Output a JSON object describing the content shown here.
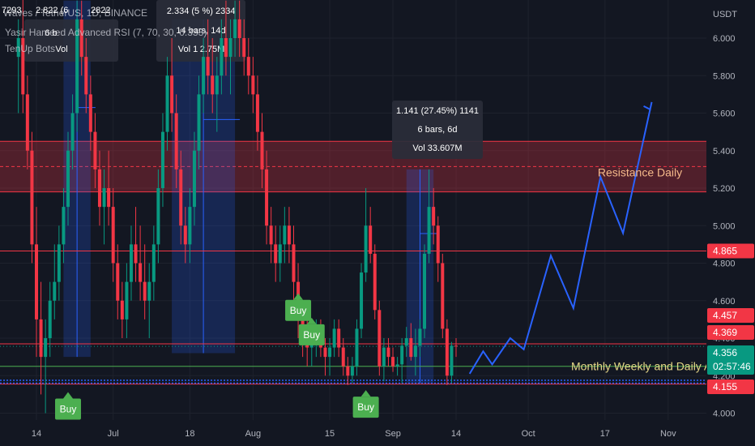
{
  "chart_data": {
    "type": "candlestick",
    "currency": "USDT",
    "header": {
      "symbol_line": "Waves / TetherUS, 1D, BINANCE",
      "indicator_line": "Yasir Hameed Advanced RSI (7, 70, 30, 0.333)",
      "bot_line": "TenUp Bots",
      "ohlc_fragment_1": "7293",
      "ohlc_fragment_2": "2.822 (6",
      "ohlc_fragment_3": "2822"
    },
    "y_axis": {
      "ticks": [
        6.0,
        5.8,
        5.6,
        5.4,
        5.2,
        5.0,
        4.8,
        4.6,
        4.4,
        4.2,
        4.0
      ],
      "tick_labels": [
        "6.000",
        "5.800",
        "5.600",
        "5.400",
        "5.200",
        "5.000",
        "4.800",
        "4.600",
        "4.400",
        "4.200",
        "4.000"
      ],
      "range": [
        3.94,
        6.18
      ]
    },
    "x_axis": {
      "labels": [
        "14",
        "Jul",
        "18",
        "Aug",
        "15",
        "Sep",
        "14",
        "Oct",
        "17",
        "Nov"
      ],
      "label_days": [
        0,
        17,
        34,
        48,
        65,
        79,
        93,
        109,
        126,
        140
      ]
    },
    "price_labels": [
      {
        "text": "4.865",
        "value": 4.865,
        "color": "#f23645"
      },
      {
        "text": "4.457",
        "value": 4.457,
        "color": "#f23645"
      },
      {
        "text": "4.369",
        "value": 4.369,
        "color": "#f23645"
      },
      {
        "text": "4.356",
        "value": 4.356,
        "color": "#089981",
        "countdown": "02:57:46"
      },
      {
        "text": "4.155",
        "value": 4.155,
        "color": "#f23645"
      }
    ],
    "horizontal_lines": [
      {
        "value": 4.865,
        "color": "#f23645"
      },
      {
        "value": 4.37,
        "color": "#f23645"
      },
      {
        "value": 4.25,
        "color": "#4caf50"
      },
      {
        "value": 4.155,
        "color": "#f23645"
      }
    ],
    "zones": [
      {
        "name": "Resistance Daily",
        "from": 5.18,
        "to": 5.45,
        "color": "#f23645"
      }
    ],
    "annotations": [
      {
        "text": "Resistance Daily",
        "color": "#f5b98a"
      },
      {
        "text": "Monthly Weekly and Daily Also",
        "color": "#e6d787"
      }
    ],
    "measures": [
      {
        "line1": "6 b",
        "line2": "Vol",
        "line2b": "",
        "fragment": "2.822 (6",
        "from_day": 6,
        "to_day": 12,
        "low": 4.3,
        "high": 6.2
      },
      {
        "line1": "2.334 (5",
        "line1b": "%) 2334",
        "line2": "14 bars, 14d",
        "line3": "Vol 1",
        "line3b": "2.75M",
        "from_day": 30,
        "to_day": 44,
        "low": 4.32,
        "high": 6.1
      },
      {
        "line1": "1.141 (27.45%) 1141",
        "line2": "6 bars, 6d",
        "line3": "Vol 33.607M",
        "from_day": 82,
        "to_day": 88,
        "low": 4.16,
        "high": 5.3
      }
    ],
    "signals": [
      {
        "text": "Buy",
        "day": 7,
        "value": 4.13,
        "dir": "below"
      },
      {
        "text": "Buy",
        "day": 58,
        "value": 4.44,
        "dir": "above"
      },
      {
        "text": "Buy",
        "day": 61,
        "value": 4.31,
        "dir": "above"
      },
      {
        "text": "Buy",
        "day": 73,
        "value": 4.14,
        "dir": "below"
      }
    ],
    "projection": {
      "color": "#2962ff",
      "points": [
        [
          96,
          4.21
        ],
        [
          99,
          4.33
        ],
        [
          101,
          4.26
        ],
        [
          105,
          4.4
        ],
        [
          108,
          4.34
        ],
        [
          114,
          4.84
        ],
        [
          119,
          4.56
        ],
        [
          125,
          5.26
        ],
        [
          130,
          4.96
        ],
        [
          136,
          5.62
        ]
      ]
    },
    "candles": {
      "start_day": -4,
      "ohlc": [
        [
          5.9,
          6.1,
          5.6,
          6.0
        ],
        [
          6.0,
          6.3,
          5.6,
          5.7
        ],
        [
          5.7,
          5.8,
          5.3,
          5.4
        ],
        [
          5.4,
          5.5,
          4.8,
          4.9
        ],
        [
          4.9,
          5.1,
          4.3,
          4.5
        ],
        [
          4.5,
          4.7,
          4.1,
          4.3
        ],
        [
          4.3,
          4.5,
          4.0,
          4.4
        ],
        [
          4.4,
          4.7,
          4.3,
          4.6
        ],
        [
          4.6,
          4.9,
          4.5,
          4.7
        ],
        [
          4.7,
          5.0,
          4.6,
          4.9
        ],
        [
          4.9,
          5.2,
          4.8,
          5.1
        ],
        [
          5.1,
          5.5,
          5.0,
          5.4
        ],
        [
          5.4,
          5.7,
          5.3,
          5.6
        ],
        [
          5.6,
          6.2,
          5.5,
          6.1
        ],
        [
          6.1,
          6.2,
          5.8,
          5.9
        ],
        [
          5.9,
          6.0,
          5.6,
          5.7
        ],
        [
          5.7,
          5.8,
          5.4,
          5.5
        ],
        [
          5.5,
          5.6,
          5.2,
          5.3
        ],
        [
          5.3,
          5.4,
          5.0,
          5.1
        ],
        [
          5.1,
          5.3,
          4.9,
          5.2
        ],
        [
          5.2,
          5.4,
          5.0,
          5.1
        ],
        [
          5.1,
          5.2,
          4.7,
          4.8
        ],
        [
          4.8,
          4.9,
          4.5,
          4.6
        ],
        [
          4.6,
          4.7,
          4.4,
          4.5
        ],
        [
          4.5,
          4.8,
          4.4,
          4.7
        ],
        [
          4.7,
          5.0,
          4.6,
          4.9
        ],
        [
          4.9,
          5.1,
          4.7,
          4.8
        ],
        [
          4.8,
          5.0,
          4.6,
          4.7
        ],
        [
          4.7,
          4.9,
          4.5,
          4.6
        ],
        [
          4.6,
          4.8,
          4.4,
          4.7
        ],
        [
          4.7,
          5.0,
          4.6,
          4.9
        ],
        [
          4.9,
          5.3,
          4.8,
          5.2
        ],
        [
          5.2,
          5.6,
          5.1,
          5.5
        ],
        [
          5.5,
          5.9,
          5.4,
          5.8
        ],
        [
          5.8,
          6.0,
          5.5,
          5.6
        ],
        [
          5.6,
          5.7,
          5.2,
          5.3
        ],
        [
          5.3,
          5.4,
          4.9,
          5.0
        ],
        [
          5.0,
          5.1,
          4.8,
          4.9
        ],
        [
          4.9,
          5.2,
          4.8,
          5.1
        ],
        [
          5.1,
          5.5,
          5.0,
          5.4
        ],
        [
          5.4,
          5.8,
          5.3,
          5.7
        ],
        [
          5.7,
          6.0,
          5.6,
          5.9
        ],
        [
          5.9,
          6.1,
          5.7,
          5.8
        ],
        [
          5.8,
          6.0,
          5.6,
          5.7
        ],
        [
          5.7,
          5.9,
          5.5,
          5.8
        ],
        [
          5.8,
          6.1,
          5.7,
          6.0
        ],
        [
          6.0,
          6.2,
          5.8,
          5.9
        ],
        [
          5.9,
          6.1,
          5.7,
          6.0
        ],
        [
          6.0,
          6.2,
          5.9,
          6.1
        ],
        [
          6.1,
          6.2,
          5.9,
          6.0
        ],
        [
          6.0,
          6.1,
          5.8,
          5.9
        ],
        [
          5.9,
          6.0,
          5.7,
          5.8
        ],
        [
          5.8,
          5.9,
          5.6,
          5.7
        ],
        [
          5.7,
          5.8,
          5.4,
          5.5
        ],
        [
          5.5,
          5.6,
          5.2,
          5.3
        ],
        [
          5.3,
          5.4,
          4.9,
          5.0
        ],
        [
          5.0,
          5.1,
          4.8,
          4.9
        ],
        [
          4.9,
          5.0,
          4.7,
          4.8
        ],
        [
          4.8,
          5.0,
          4.7,
          4.9
        ],
        [
          4.9,
          5.1,
          4.8,
          5.0
        ],
        [
          5.0,
          5.1,
          4.8,
          4.9
        ],
        [
          4.9,
          5.0,
          4.6,
          4.7
        ],
        [
          4.7,
          4.8,
          4.4,
          4.5
        ],
        [
          4.5,
          4.6,
          4.3,
          4.4
        ],
        [
          4.4,
          4.5,
          4.25,
          4.35
        ],
        [
          4.35,
          4.45,
          4.25,
          4.4
        ],
        [
          4.4,
          4.5,
          4.3,
          4.45
        ],
        [
          4.45,
          4.5,
          4.3,
          4.35
        ],
        [
          4.35,
          4.4,
          4.2,
          4.3
        ],
        [
          4.3,
          4.4,
          4.2,
          4.35
        ],
        [
          4.35,
          4.5,
          4.3,
          4.45
        ],
        [
          4.45,
          4.5,
          4.3,
          4.35
        ],
        [
          4.35,
          4.4,
          4.2,
          4.25
        ],
        [
          4.25,
          4.3,
          4.15,
          4.2
        ],
        [
          4.2,
          4.3,
          4.16,
          4.25
        ],
        [
          4.25,
          4.5,
          4.2,
          4.45
        ],
        [
          4.45,
          4.8,
          4.4,
          4.75
        ],
        [
          4.75,
          5.2,
          4.7,
          5.0
        ],
        [
          5.0,
          5.1,
          4.8,
          4.85
        ],
        [
          4.85,
          4.9,
          4.5,
          4.55
        ],
        [
          4.55,
          4.6,
          4.2,
          4.25
        ],
        [
          4.25,
          4.4,
          4.17,
          4.35
        ],
        [
          4.35,
          4.4,
          4.25,
          4.3
        ],
        [
          4.3,
          4.35,
          4.22,
          4.25
        ],
        [
          4.25,
          4.3,
          4.2,
          4.26
        ],
        [
          4.26,
          4.4,
          4.16,
          4.36
        ],
        [
          4.36,
          4.46,
          4.3,
          4.4
        ],
        [
          4.4,
          4.48,
          4.28,
          4.3
        ],
        [
          4.3,
          4.45,
          4.2,
          4.36
        ],
        [
          4.36,
          4.5,
          4.3,
          4.45
        ],
        [
          4.45,
          4.9,
          4.4,
          4.85
        ],
        [
          4.85,
          5.3,
          4.8,
          5.1
        ],
        [
          5.1,
          5.2,
          4.9,
          5.0
        ],
        [
          5.0,
          5.05,
          4.7,
          4.8
        ],
        [
          4.8,
          4.85,
          4.4,
          4.45
        ],
        [
          4.45,
          4.5,
          4.15,
          4.2
        ],
        [
          4.2,
          4.38,
          4.16,
          4.36
        ],
        [
          4.36,
          4.4,
          4.3,
          4.356
        ]
      ]
    }
  }
}
